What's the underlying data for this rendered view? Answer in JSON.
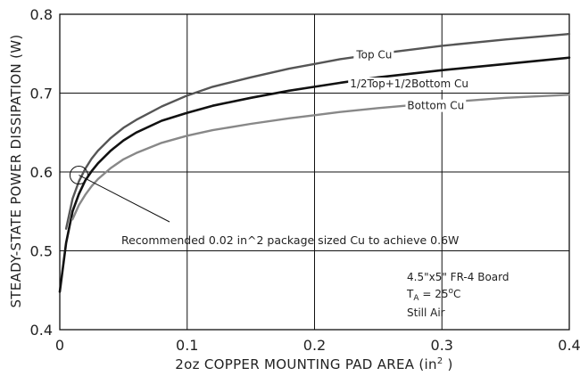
{
  "chart_data": {
    "type": "line",
    "xlabel": "2oz COPPER MOUNTING PAD AREA (in",
    "xlabel_sup": "2",
    "xlabel_tail": " )",
    "ylabel": "STEADY-STATE POWER DISSIPATION (W)",
    "xlim": [
      0,
      0.4
    ],
    "ylim": [
      0.4,
      0.8
    ],
    "x_ticks": [
      0,
      0.1,
      0.2,
      0.3,
      0.4
    ],
    "x_tick_labels": [
      "0",
      "0.1",
      "0.2",
      "0.3",
      "0.4"
    ],
    "y_ticks": [
      0.4,
      0.5,
      0.6,
      0.7,
      0.8
    ],
    "y_tick_labels": [
      "0.4",
      "0.5",
      "0.6",
      "0.7",
      "0.8"
    ],
    "grid": true,
    "series": [
      {
        "name": "Top Cu",
        "color": "#555555",
        "x": [
          0.005,
          0.01,
          0.015,
          0.02,
          0.025,
          0.03,
          0.04,
          0.05,
          0.06,
          0.08,
          0.1,
          0.12,
          0.15,
          0.18,
          0.2,
          0.22,
          0.25,
          0.3,
          0.35,
          0.4
        ],
        "y": [
          0.528,
          0.566,
          0.588,
          0.604,
          0.617,
          0.627,
          0.643,
          0.656,
          0.666,
          0.683,
          0.697,
          0.708,
          0.72,
          0.731,
          0.737,
          0.743,
          0.75,
          0.76,
          0.768,
          0.775
        ]
      },
      {
        "name": "1/2Top+1/2Bottom Cu",
        "color": "#111111",
        "x": [
          0,
          0.005,
          0.01,
          0.015,
          0.02,
          0.025,
          0.03,
          0.04,
          0.05,
          0.06,
          0.08,
          0.1,
          0.12,
          0.15,
          0.18,
          0.2,
          0.22,
          0.25,
          0.3,
          0.35,
          0.4
        ],
        "y": [
          0.448,
          0.51,
          0.55,
          0.572,
          0.589,
          0.601,
          0.611,
          0.627,
          0.64,
          0.65,
          0.665,
          0.675,
          0.684,
          0.694,
          0.703,
          0.708,
          0.713,
          0.72,
          0.729,
          0.737,
          0.745
        ]
      },
      {
        "name": "Bottom Cu",
        "color": "#888888",
        "x": [
          0.01,
          0.015,
          0.02,
          0.025,
          0.03,
          0.04,
          0.05,
          0.06,
          0.08,
          0.1,
          0.12,
          0.15,
          0.18,
          0.2,
          0.22,
          0.25,
          0.3,
          0.35,
          0.4
        ],
        "y": [
          0.54,
          0.558,
          0.571,
          0.582,
          0.591,
          0.605,
          0.616,
          0.624,
          0.637,
          0.646,
          0.653,
          0.661,
          0.668,
          0.672,
          0.676,
          0.681,
          0.688,
          0.694,
          0.698
        ]
      }
    ],
    "annotation": {
      "text": "Recommended  0.02 in^2 package sized Cu to achieve 0.6W",
      "point": [
        0.015,
        0.596
      ]
    },
    "conditions": [
      "4.5\"x5\" FR-4 Board",
      "T",
      "A",
      " = 25",
      "o",
      "C",
      "Still Air"
    ]
  }
}
